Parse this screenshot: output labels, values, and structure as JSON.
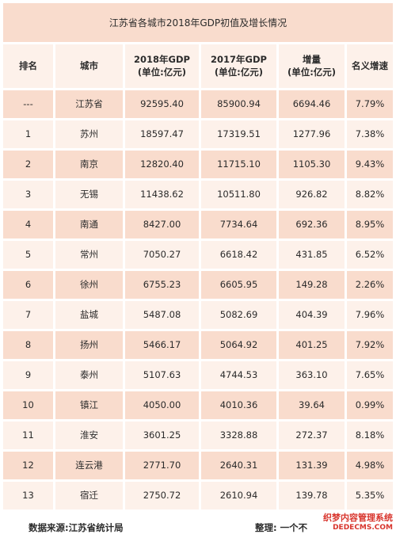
{
  "table": {
    "title": "江苏省各城市2018年GDP初值及增长情况",
    "headers": {
      "rank": "排名",
      "city": "城市",
      "gdp2018_line1": "2018年GDP",
      "gdp2018_line2": "(单位:亿元)",
      "gdp2017_line1": "2017年GDP",
      "gdp2017_line2": "(单位:亿元)",
      "increase_line1": "增量",
      "increase_line2": "(单位:亿元)",
      "rate": "名义增速"
    },
    "rows": [
      {
        "rank": "---",
        "city": "江苏省",
        "gdp2018": "92595.40",
        "gdp2017": "85900.94",
        "increase": "6694.46",
        "rate": "7.79%"
      },
      {
        "rank": "1",
        "city": "苏州",
        "gdp2018": "18597.47",
        "gdp2017": "17319.51",
        "increase": "1277.96",
        "rate": "7.38%"
      },
      {
        "rank": "2",
        "city": "南京",
        "gdp2018": "12820.40",
        "gdp2017": "11715.10",
        "increase": "1105.30",
        "rate": "9.43%"
      },
      {
        "rank": "3",
        "city": "无锡",
        "gdp2018": "11438.62",
        "gdp2017": "10511.80",
        "increase": "926.82",
        "rate": "8.82%"
      },
      {
        "rank": "4",
        "city": "南通",
        "gdp2018": "8427.00",
        "gdp2017": "7734.64",
        "increase": "692.36",
        "rate": "8.95%"
      },
      {
        "rank": "5",
        "city": "常州",
        "gdp2018": "7050.27",
        "gdp2017": "6618.42",
        "increase": "431.85",
        "rate": "6.52%"
      },
      {
        "rank": "6",
        "city": "徐州",
        "gdp2018": "6755.23",
        "gdp2017": "6605.95",
        "increase": "149.28",
        "rate": "2.26%"
      },
      {
        "rank": "7",
        "city": "盐城",
        "gdp2018": "5487.08",
        "gdp2017": "5082.69",
        "increase": "404.39",
        "rate": "7.96%"
      },
      {
        "rank": "8",
        "city": "扬州",
        "gdp2018": "5466.17",
        "gdp2017": "5064.92",
        "increase": "401.25",
        "rate": "7.92%"
      },
      {
        "rank": "9",
        "city": "泰州",
        "gdp2018": "5107.63",
        "gdp2017": "4744.53",
        "increase": "363.10",
        "rate": "7.65%"
      },
      {
        "rank": "10",
        "city": "镇江",
        "gdp2018": "4050.00",
        "gdp2017": "4010.36",
        "increase": "39.64",
        "rate": "0.99%"
      },
      {
        "rank": "11",
        "city": "淮安",
        "gdp2018": "3601.25",
        "gdp2017": "3328.88",
        "increase": "272.37",
        "rate": "8.18%"
      },
      {
        "rank": "12",
        "city": "连云港",
        "gdp2018": "2771.70",
        "gdp2017": "2640.31",
        "increase": "131.39",
        "rate": "4.98%"
      },
      {
        "rank": "13",
        "city": "宿迁",
        "gdp2018": "2750.72",
        "gdp2017": "2610.94",
        "increase": "139.78",
        "rate": "5.35%"
      }
    ]
  },
  "footer": {
    "source": "数据来源:江苏省统计局",
    "editor": "整理: 一个不"
  },
  "watermark": {
    "main": "织梦内容管理系统",
    "sub": "DEDECMS.COM"
  },
  "colors": {
    "pink_row": "#f9dccd",
    "light_row": "#fdf1ea",
    "watermark": "#d8342c"
  }
}
